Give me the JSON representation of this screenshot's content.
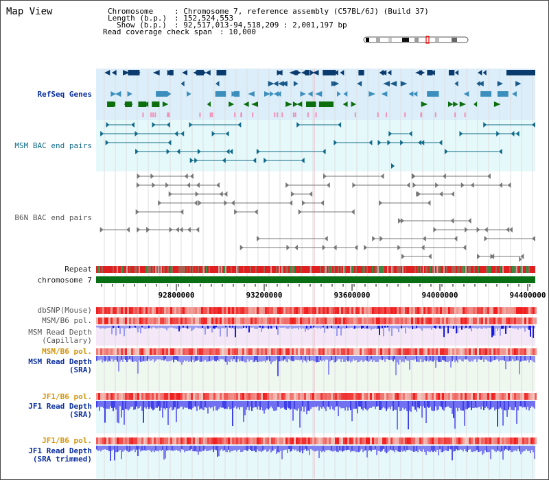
{
  "page": {
    "title": "Map View"
  },
  "header": {
    "chromosome_key": "Chromosome",
    "chromosome_value": ": Chromosome 7, reference assembly (C57BL/6J) (Build 37)",
    "length_key": "Length (b.p.)",
    "length_value": ": 152,524,553",
    "show_key": "Show (b.p.)",
    "show_value": ": 92,517,013-94,518,209 : 2,001,197 bp",
    "coverage_key": "Read coverage check span",
    "coverage_value": ": 10,000"
  },
  "tracks": {
    "refseq": "RefSeq Genes",
    "msm_bac": "MSM BAC end pairs",
    "b6n_bac": "B6N BAC end pairs",
    "repeat": "Repeat",
    "chromosome": "chromosome 7",
    "dbsnp": "dbSNP(Mouse)",
    "msm_b6_pol_1": "MSM/B6 pol.",
    "msm_read_depth_cap_1": "MSM Read Depth",
    "msm_read_depth_cap_2": "(Capillary)",
    "msm_b6_pol_2": "MSM/B6 pol.",
    "msm_read_depth_sra_1": "MSM Read Depth",
    "msm_read_depth_sra_2": "(SRA)",
    "jf1_b6_pol_1": "JF1/B6 pol.",
    "jf1_read_depth_sra_1": "JF1 Read Depth",
    "jf1_read_depth_sra_2": "(SRA)",
    "jf1_b6_pol_2": "JF1/B6 pol.",
    "jf1_read_depth_trim_1": "JF1 Read Depth",
    "jf1_read_depth_trim_2": "(SRA trimmed)"
  },
  "axis": {
    "ticks": [
      "92800000",
      "93200000",
      "93600000",
      "94000000",
      "94400000"
    ]
  },
  "colors": {
    "refseq_bg": "#dbeefa",
    "bac_bg": "#e6f9fa",
    "gene_navy": "#0a3a6e",
    "gene_blue": "#3c8ebc",
    "gene_green": "#0c6e0c",
    "chromosome_green": "#0a6e14",
    "pol_red": "#e02020",
    "depth_blue": "#2828e0",
    "depth_light": "#8888f0"
  }
}
